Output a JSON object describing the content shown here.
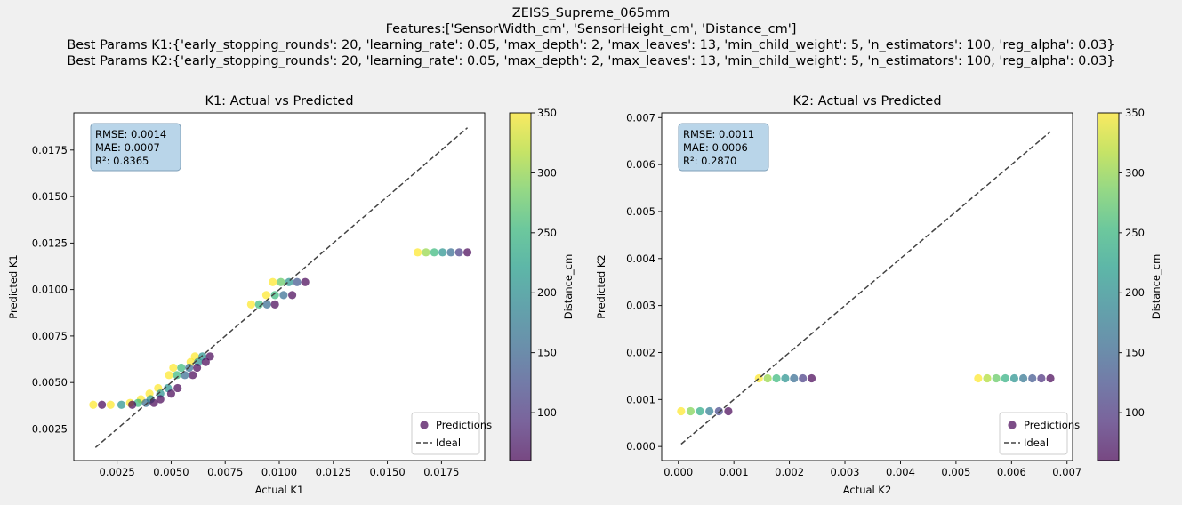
{
  "suptitle": {
    "line1": "ZEISS_Supreme_065mm",
    "line2": "Features:['SensorWidth_cm', 'SensorHeight_cm', 'Distance_cm']",
    "line3": "Best Params K1:{'early_stopping_rounds': 20, 'learning_rate': 0.05, 'max_depth': 2, 'max_leaves': 13, 'min_child_weight': 5, 'n_estimators': 100, 'reg_alpha': 0.03}",
    "line4": "Best Params K2:{'early_stopping_rounds': 20, 'learning_rate': 0.05, 'max_depth': 2, 'max_leaves': 13, 'min_child_weight': 5, 'n_estimators': 100, 'reg_alpha': 0.03}"
  },
  "colormap": {
    "name": "viridis",
    "stops": [
      "#440154",
      "#482878",
      "#3e4989",
      "#31688e",
      "#26828e",
      "#1f9e89",
      "#35b779",
      "#6ece58",
      "#b5de2b",
      "#fde725"
    ],
    "alpha": 0.7
  },
  "chart_data": [
    {
      "type": "scatter",
      "title": "K1: Actual vs Predicted",
      "xlabel": "Actual K1",
      "ylabel": "Predicted K1",
      "xlim": [
        0.0005,
        0.0195
      ],
      "ylim": [
        0.0008,
        0.0195
      ],
      "xticks": [
        0.0025,
        0.005,
        0.0075,
        0.01,
        0.0125,
        0.015,
        0.0175
      ],
      "xtick_labels": [
        "0.0025",
        "0.0050",
        "0.0075",
        "0.0100",
        "0.0125",
        "0.0150",
        "0.0175"
      ],
      "yticks": [
        0.0025,
        0.005,
        0.0075,
        0.01,
        0.0125,
        0.015,
        0.0175
      ],
      "ytick_labels": [
        "0.0025",
        "0.0050",
        "0.0075",
        "0.0100",
        "0.0125",
        "0.0150",
        "0.0175"
      ],
      "metrics": {
        "rmse": "RMSE: 0.0014",
        "mae": "MAE: 0.0007",
        "r2": "R²: 0.8365"
      },
      "ideal_line": {
        "x": [
          0.0015,
          0.0187
        ],
        "y": [
          0.0015,
          0.0187
        ]
      },
      "legend": {
        "position": "lower right",
        "items": [
          "Predictions",
          "Ideal"
        ]
      },
      "colorbar": {
        "label": "Distance_cm",
        "range": [
          60,
          350
        ],
        "ticks": [
          100,
          150,
          200,
          250,
          300,
          350
        ],
        "tick_labels": [
          "100",
          "150",
          "200",
          "250",
          "300",
          "350"
        ]
      },
      "clusters": [
        {
          "y": 0.012,
          "x_start": 0.0164,
          "x_end": 0.0187
        },
        {
          "y": 0.0104,
          "x_start": 0.0097,
          "x_end": 0.0112
        },
        {
          "y": 0.0097,
          "x_start": 0.0094,
          "x_end": 0.0106
        },
        {
          "y": 0.0092,
          "x_start": 0.0087,
          "x_end": 0.0098
        },
        {
          "y": 0.0064,
          "x_start": 0.0061,
          "x_end": 0.0068
        },
        {
          "y": 0.0061,
          "x_start": 0.0059,
          "x_end": 0.0066
        },
        {
          "y": 0.0058,
          "x_start": 0.0051,
          "x_end": 0.0062
        },
        {
          "y": 0.0054,
          "x_start": 0.0049,
          "x_end": 0.006
        },
        {
          "y": 0.0047,
          "x_start": 0.0044,
          "x_end": 0.0053
        },
        {
          "y": 0.0044,
          "x_start": 0.004,
          "x_end": 0.005
        },
        {
          "y": 0.0041,
          "x_start": 0.0036,
          "x_end": 0.0045
        },
        {
          "y": 0.0039,
          "x_start": 0.0031,
          "x_end": 0.0042
        },
        {
          "y": 0.0038,
          "x_start": 0.0022,
          "x_end": 0.0032
        },
        {
          "y": 0.0038,
          "x_start": 0.0014,
          "x_end": 0.0018
        }
      ]
    },
    {
      "type": "scatter",
      "title": "K2: Actual vs Predicted",
      "xlabel": "Actual K2",
      "ylabel": "Predicted K2",
      "xlim": [
        -0.0003,
        0.0071
      ],
      "ylim": [
        -0.0003,
        0.0071
      ],
      "xticks": [
        0,
        0.001,
        0.002,
        0.003,
        0.004,
        0.005,
        0.006,
        0.007
      ],
      "xtick_labels": [
        "0.000",
        "0.001",
        "0.002",
        "0.003",
        "0.004",
        "0.005",
        "0.006",
        "0.007"
      ],
      "yticks": [
        0,
        0.001,
        0.002,
        0.003,
        0.004,
        0.005,
        0.006,
        0.007
      ],
      "ytick_labels": [
        "0.000",
        "0.001",
        "0.002",
        "0.003",
        "0.004",
        "0.005",
        "0.006",
        "0.007"
      ],
      "metrics": {
        "rmse": "RMSE: 0.0011",
        "mae": "MAE: 0.0006",
        "r2": "R²: 0.2870"
      },
      "ideal_line": {
        "x": [
          5e-05,
          0.0067
        ],
        "y": [
          5e-05,
          0.0067
        ]
      },
      "legend": {
        "position": "lower right",
        "items": [
          "Predictions",
          "Ideal"
        ]
      },
      "colorbar": {
        "label": "Distance_cm",
        "range": [
          60,
          350
        ],
        "ticks": [
          100,
          150,
          200,
          250,
          300,
          350
        ],
        "tick_labels": [
          "100",
          "150",
          "200",
          "250",
          "300",
          "350"
        ]
      },
      "clusters": [
        {
          "y": 0.00145,
          "x_start": 0.0054,
          "x_end": 0.0067
        },
        {
          "y": 0.00145,
          "x_start": 0.00145,
          "x_end": 0.0024
        },
        {
          "y": 0.00075,
          "x_start": 5e-05,
          "x_end": 0.0009
        }
      ]
    }
  ]
}
